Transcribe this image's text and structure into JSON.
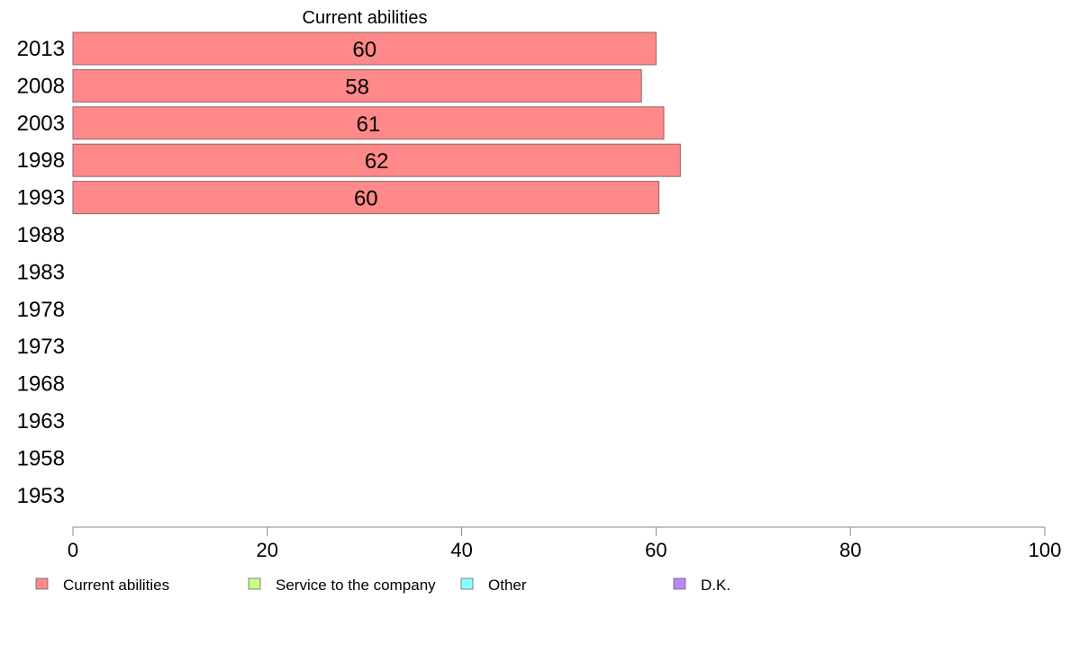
{
  "chart_data": {
    "type": "bar",
    "orientation": "horizontal",
    "title": "Current abilities",
    "categories": [
      "2013",
      "2008",
      "2003",
      "1998",
      "1993",
      "1988",
      "1983",
      "1978",
      "1973",
      "1968",
      "1963",
      "1958",
      "1953"
    ],
    "series": [
      {
        "name": "Current abilities",
        "color": "#ff8888",
        "values": [
          60,
          58.5,
          60.8,
          62.5,
          60.3,
          null,
          null,
          null,
          null,
          null,
          null,
          null,
          null
        ],
        "labels": [
          "60",
          "58",
          "61",
          "62",
          "60",
          "",
          "",
          "",
          "",
          "",
          "",
          "",
          ""
        ]
      }
    ],
    "xlim": [
      0,
      100
    ],
    "xticks": [
      "0",
      "20",
      "40",
      "60",
      "80",
      "100"
    ],
    "grid": false,
    "legend_position": "bottom",
    "legend": [
      {
        "label": "Current abilities",
        "color": "#ff8888"
      },
      {
        "label": "Service to the company",
        "color": "#ccff88"
      },
      {
        "label": "Other",
        "color": "#88ffff"
      },
      {
        "label": "D.K.",
        "color": "#bb88ff"
      }
    ]
  }
}
